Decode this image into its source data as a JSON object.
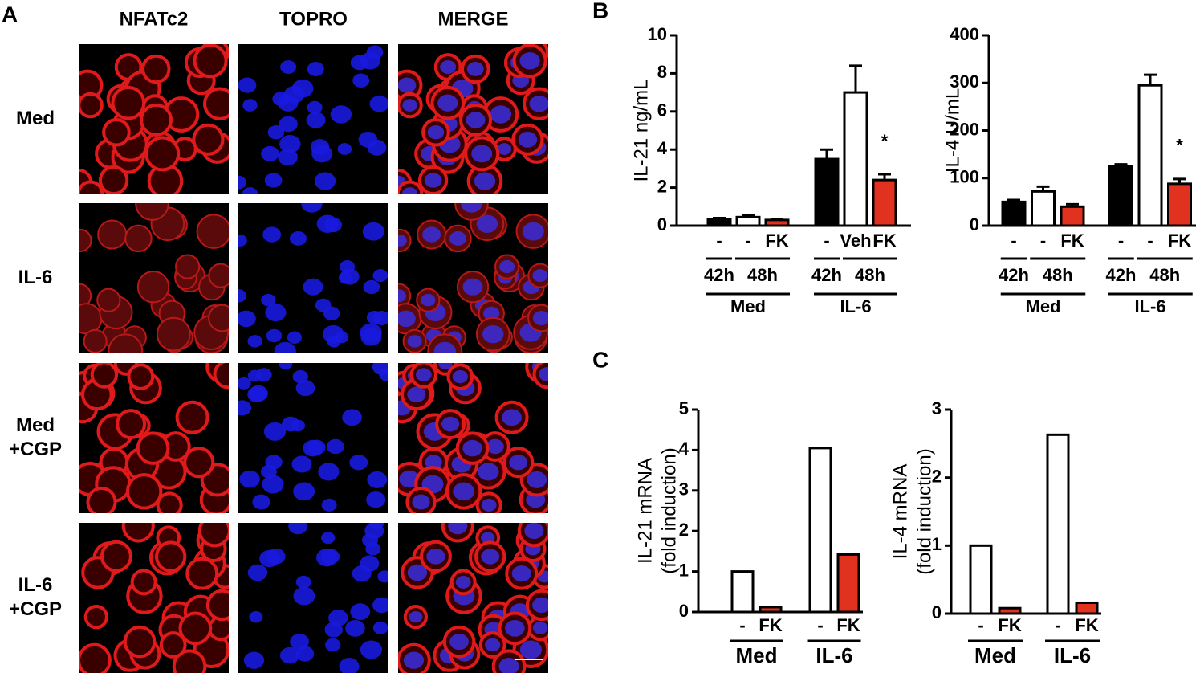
{
  "panel_a": {
    "label": "A",
    "columns": [
      "NFATc2",
      "TOPRO",
      "MERGE"
    ],
    "rows": [
      [
        "Med"
      ],
      [
        "IL-6"
      ],
      [
        "Med",
        "+CGP"
      ],
      [
        "IL-6",
        "+CGP"
      ]
    ]
  },
  "panel_labels": [
    "B",
    "C"
  ],
  "chart_data": [
    {
      "type": "bar",
      "ylabel": [
        "IL-21 ng/mL"
      ],
      "categories": [
        "-",
        "-",
        "FK",
        "-",
        "Veh",
        "FK"
      ],
      "values": [
        0.35,
        0.45,
        0.3,
        3.5,
        7.0,
        2.4
      ],
      "errors": [
        0.05,
        0.08,
        0.05,
        0.5,
        1.4,
        0.3
      ],
      "colors": [
        "#000000",
        "#ffffff",
        "#e0321e",
        "#000000",
        "#ffffff",
        "#e0321e"
      ],
      "subgroups": [
        {
          "label": "42h",
          "size": 1
        },
        {
          "label": "48h",
          "size": 2
        },
        {
          "label": "42h",
          "size": 1
        },
        {
          "label": "48h",
          "size": 2
        }
      ],
      "groups": [
        {
          "label": "Med",
          "size": 3
        },
        {
          "label": "IL-6",
          "size": 3
        }
      ],
      "annotation": {
        "text": "*",
        "category": 5
      },
      "ylim": [
        0,
        10
      ],
      "yticks": [
        0,
        2,
        4,
        6,
        8,
        10
      ]
    },
    {
      "type": "bar",
      "ylabel": [
        "IL-4 U/mL"
      ],
      "categories": [
        "-",
        "-",
        "FK",
        "-",
        "-",
        "FK"
      ],
      "values": [
        50,
        72,
        40,
        125,
        295,
        88
      ],
      "errors": [
        4,
        10,
        5,
        4,
        22,
        10
      ],
      "colors": [
        "#000000",
        "#ffffff",
        "#e0321e",
        "#000000",
        "#ffffff",
        "#e0321e"
      ],
      "subgroups": [
        {
          "label": "42h",
          "size": 1
        },
        {
          "label": "48h",
          "size": 2
        },
        {
          "label": "42h",
          "size": 1
        },
        {
          "label": "48h",
          "size": 2
        }
      ],
      "groups": [
        {
          "label": "Med",
          "size": 3
        },
        {
          "label": "IL-6",
          "size": 3
        }
      ],
      "annotation": {
        "text": "*",
        "category": 5
      },
      "ylim": [
        0,
        400
      ],
      "yticks": [
        0,
        100,
        200,
        300,
        400
      ]
    },
    {
      "type": "bar",
      "ylabel": [
        "IL-21 mRNA",
        "(fold induction)"
      ],
      "categories": [
        "-",
        "FK",
        "-",
        "FK"
      ],
      "values": [
        1.0,
        0.12,
        4.05,
        1.42
      ],
      "colors": [
        "#ffffff",
        "#e0321e",
        "#ffffff",
        "#e0321e"
      ],
      "groups": [
        {
          "label": "Med",
          "size": 2
        },
        {
          "label": "IL-6",
          "size": 2
        }
      ],
      "ylim": [
        0,
        5
      ],
      "yticks": [
        0,
        1,
        2,
        3,
        4,
        5
      ]
    },
    {
      "type": "bar",
      "ylabel": [
        "IL-4 mRNA",
        "(fold induction)"
      ],
      "categories": [
        "-",
        "FK",
        "-",
        "FK"
      ],
      "values": [
        1.0,
        0.08,
        2.63,
        0.16
      ],
      "colors": [
        "#ffffff",
        "#e0321e",
        "#ffffff",
        "#e0321e"
      ],
      "groups": [
        {
          "label": "Med",
          "size": 2
        },
        {
          "label": "IL-6",
          "size": 2
        }
      ],
      "ylim": [
        0,
        3
      ],
      "yticks": [
        0,
        1,
        2,
        3
      ]
    }
  ]
}
